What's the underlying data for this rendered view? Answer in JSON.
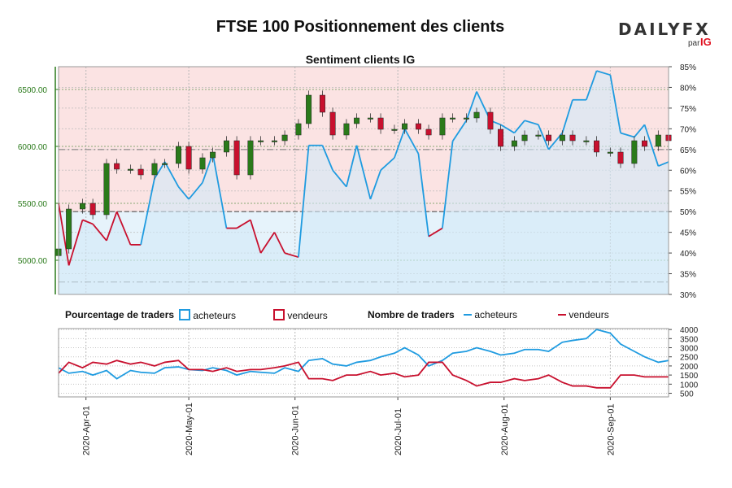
{
  "title": "FTSE 100 Positionnement des clients",
  "subtitle": "Sentiment clients IG",
  "logo": {
    "brand": "DAILYFX",
    "by": "par",
    "ig": "IG"
  },
  "legend": {
    "pct_title": "Pourcentage de traders",
    "count_title": "Nombre de traders",
    "buyers": "acheteurs",
    "sellers": "vendeurs"
  },
  "colors": {
    "buyers": "#1f9be0",
    "sellers": "#c8102e",
    "bull": "#2a7a1a",
    "bear": "#c8102e",
    "bg_top": "#fbe3e3",
    "bg_bottom": "#e6f3fb",
    "price_axis": "#2a7a1a"
  },
  "chart_data": {
    "type": "line",
    "dates": [
      "2020-03-24",
      "2020-03-27",
      "2020-03-31",
      "2020-04-03",
      "2020-04-07",
      "2020-04-10",
      "2020-04-14",
      "2020-04-17",
      "2020-04-21",
      "2020-04-24",
      "2020-04-28",
      "2020-05-01",
      "2020-05-05",
      "2020-05-08",
      "2020-05-12",
      "2020-05-15",
      "2020-05-19",
      "2020-05-22",
      "2020-05-26",
      "2020-05-29",
      "2020-06-02",
      "2020-06-05",
      "2020-06-09",
      "2020-06-12",
      "2020-06-16",
      "2020-06-19",
      "2020-06-23",
      "2020-06-26",
      "2020-06-30",
      "2020-07-03",
      "2020-07-07",
      "2020-07-10",
      "2020-07-14",
      "2020-07-17",
      "2020-07-21",
      "2020-07-24",
      "2020-07-28",
      "2020-07-31",
      "2020-08-04",
      "2020-08-07",
      "2020-08-11",
      "2020-08-14",
      "2020-08-18",
      "2020-08-21",
      "2020-08-25",
      "2020-08-28",
      "2020-09-01",
      "2020-09-04",
      "2020-09-08",
      "2020-09-11",
      "2020-09-15",
      "2020-09-18"
    ],
    "price_close": [
      5100,
      5450,
      5500,
      5400,
      5850,
      5800,
      5800,
      5750,
      5850,
      5850,
      6000,
      5800,
      5900,
      5950,
      6050,
      5750,
      6050,
      6050,
      6050,
      6100,
      6200,
      6450,
      6300,
      6100,
      6200,
      6250,
      6250,
      6150,
      6150,
      6200,
      6150,
      6100,
      6250,
      6250,
      6250,
      6300,
      6150,
      6000,
      6050,
      6100,
      6100,
      6050,
      6100,
      6050,
      6050,
      5950,
      5950,
      5850,
      6050,
      6000,
      6100,
      6050
    ],
    "pct_buyers": [
      0.52,
      0.37,
      0.48,
      0.47,
      0.43,
      0.5,
      0.42,
      0.42,
      0.58,
      0.62,
      0.56,
      0.53,
      0.57,
      0.64,
      0.46,
      0.46,
      0.48,
      0.4,
      0.45,
      0.4,
      0.39,
      0.66,
      0.66,
      0.6,
      0.56,
      0.66,
      0.53,
      0.6,
      0.63,
      0.7,
      0.64,
      0.44,
      0.46,
      0.67,
      0.72,
      0.79,
      0.72,
      0.71,
      0.69,
      0.72,
      0.71,
      0.65,
      0.69,
      0.77,
      0.77,
      0.84,
      0.83,
      0.69,
      0.68,
      0.71,
      0.61,
      0.62
    ],
    "count_buyers": [
      1900,
      1600,
      1700,
      1500,
      1750,
      1300,
      1750,
      1650,
      1600,
      1900,
      1950,
      1800,
      1750,
      1900,
      1750,
      1500,
      1700,
      1650,
      1600,
      1900,
      1700,
      2300,
      2400,
      2100,
      2000,
      2200,
      2300,
      2500,
      2700,
      3000,
      2600,
      2000,
      2300,
      2700,
      2800,
      3000,
      2800,
      2600,
      2700,
      2900,
      2900,
      2800,
      3300,
      3400,
      3500,
      4000,
      3800,
      3200,
      2800,
      2500,
      2200,
      2300
    ],
    "count_sellers": [
      1600,
      2200,
      1900,
      2200,
      2100,
      2300,
      2100,
      2200,
      2000,
      2200,
      2300,
      1800,
      1800,
      1700,
      1900,
      1700,
      1800,
      1800,
      1900,
      2000,
      2200,
      1300,
      1300,
      1200,
      1500,
      1500,
      1700,
      1500,
      1600,
      1400,
      1500,
      2200,
      2200,
      1500,
      1200,
      900,
      1100,
      1100,
      1300,
      1200,
      1300,
      1500,
      1100,
      900,
      900,
      800,
      800,
      1500,
      1500,
      1400,
      1400,
      1400
    ],
    "price_axis": {
      "ticks": [
        "5000.00",
        "5500.00",
        "6000.00",
        "6500.00"
      ],
      "min": 4700,
      "max": 6700
    },
    "pct_axis": {
      "ticks": [
        "30%",
        "35%",
        "40%",
        "45%",
        "50%",
        "55%",
        "60%",
        "65%",
        "70%",
        "75%",
        "80%",
        "85%"
      ],
      "min": 0.3,
      "max": 0.85
    },
    "count_axis": {
      "ticks": [
        "500",
        "1000",
        "1500",
        "2000",
        "2500",
        "3000",
        "3500",
        "4000"
      ],
      "min": 300,
      "max": 4050
    },
    "x_ticks": [
      "2020-Apr-01",
      "2020-May-01",
      "2020-Jun-01",
      "2020-Jul-01",
      "2020-Aug-01",
      "2020-Sep-01"
    ],
    "x_tick_dates": [
      "2020-04-01",
      "2020-05-01",
      "2020-06-01",
      "2020-07-01",
      "2020-08-01",
      "2020-09-01"
    ]
  }
}
